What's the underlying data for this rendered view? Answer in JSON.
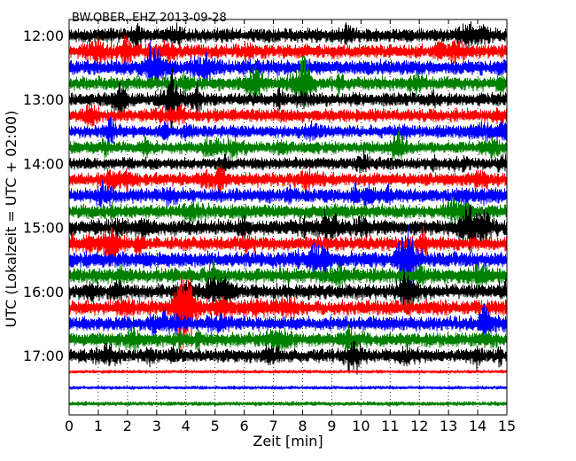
{
  "chart_data": {
    "type": "line",
    "title": "BW.OBER..EHZ 2013-09-28",
    "xlabel": "Zeit  [min]",
    "ylabel": "UTC (Lokalzeit = UTC + 02:00)",
    "xlim": [
      0,
      15
    ],
    "x_ticks": [
      0,
      1,
      2,
      3,
      4,
      5,
      6,
      7,
      8,
      9,
      10,
      11,
      12,
      13,
      14,
      15
    ],
    "y_ticks": [
      "12:00",
      "13:00",
      "14:00",
      "15:00",
      "16:00",
      "17:00"
    ],
    "grid": "vertical dotted",
    "trace_color_cycle": [
      "#000000",
      "#ff0000",
      "#0000ff",
      "#008000"
    ],
    "traces": [
      {
        "start": "12:00",
        "amplitude": 0.35
      },
      {
        "start": "12:15",
        "amplitude": 0.35
      },
      {
        "start": "12:30",
        "amplitude": 0.38
      },
      {
        "start": "12:45",
        "amplitude": 0.35
      },
      {
        "start": "13:00",
        "amplitude": 0.33
      },
      {
        "start": "13:15",
        "amplitude": 0.33
      },
      {
        "start": "13:30",
        "amplitude": 0.3
      },
      {
        "start": "13:45",
        "amplitude": 0.3
      },
      {
        "start": "14:00",
        "amplitude": 0.3
      },
      {
        "start": "14:15",
        "amplitude": 0.33
      },
      {
        "start": "14:30",
        "amplitude": 0.35
      },
      {
        "start": "14:45",
        "amplitude": 0.35
      },
      {
        "start": "15:00",
        "amplitude": 0.38
      },
      {
        "start": "15:15",
        "amplitude": 0.35
      },
      {
        "start": "15:30",
        "amplitude": 0.4
      },
      {
        "start": "15:45",
        "amplitude": 0.38
      },
      {
        "start": "16:00",
        "amplitude": 0.38
      },
      {
        "start": "16:15",
        "amplitude": 0.38
      },
      {
        "start": "16:30",
        "amplitude": 0.35
      },
      {
        "start": "16:45",
        "amplitude": 0.35
      },
      {
        "start": "17:00",
        "amplitude": 0.33
      },
      {
        "start": "17:15",
        "amplitude": 0.08
      },
      {
        "start": "17:30",
        "amplitude": 0.08
      },
      {
        "start": "17:45",
        "amplitude": 0.1
      }
    ]
  }
}
